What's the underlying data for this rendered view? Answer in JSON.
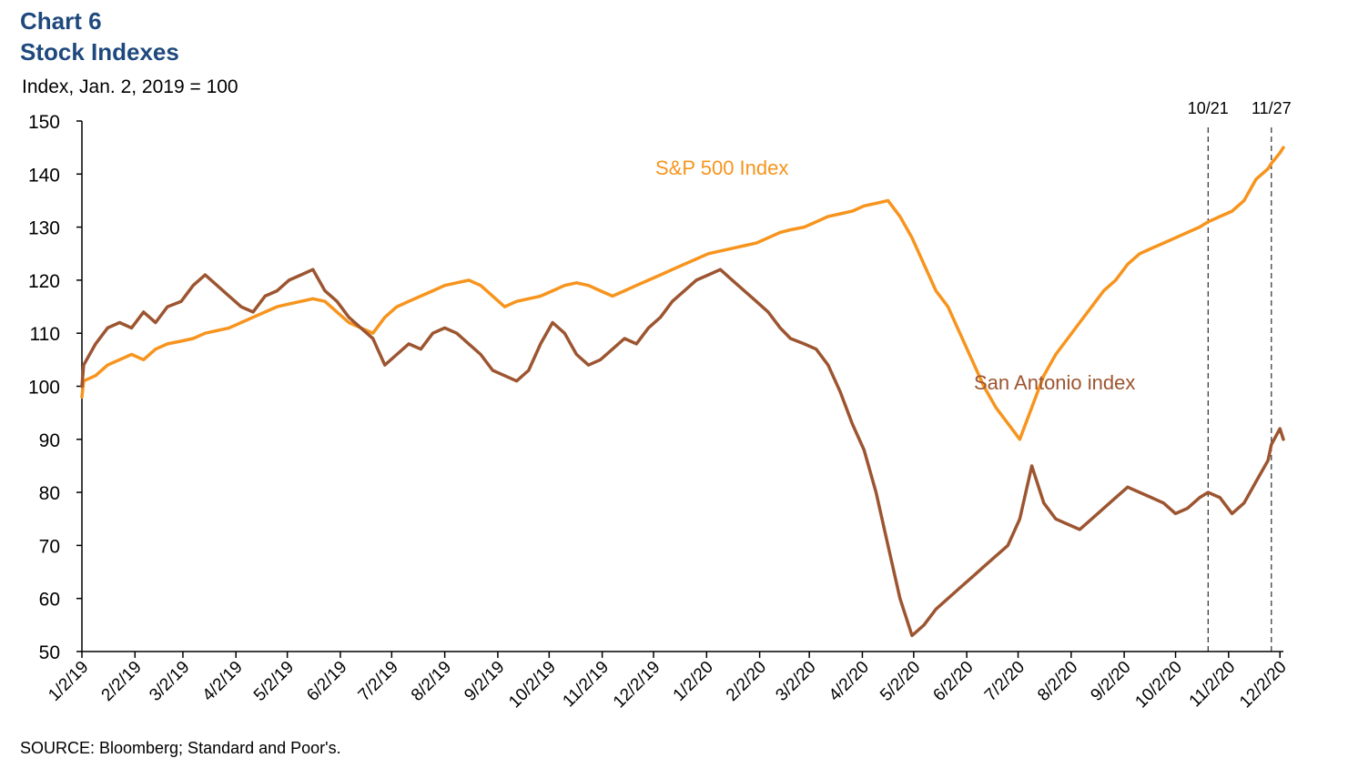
{
  "header": {
    "chart_number": "Chart 6",
    "title": "Stock Indexes",
    "y_unit_label": "Index, Jan. 2, 2019 = 100"
  },
  "footer": {
    "source": "SOURCE: Bloomberg; Standard and Poor's."
  },
  "colors": {
    "title": "#1f497d",
    "sp500": "#f7941d",
    "san_antonio": "#9c5530",
    "axis": "#000000"
  },
  "chart_data": {
    "type": "line",
    "title": "Stock Indexes",
    "ylabel": "Index, Jan. 2, 2019 = 100",
    "xlabel": "",
    "ylim": [
      50,
      150
    ],
    "yticks": [
      50,
      60,
      70,
      80,
      90,
      100,
      110,
      120,
      130,
      140,
      150
    ],
    "xlim": [
      "2019-01-02",
      "2020-12-04"
    ],
    "xticks": [
      "2019-01-02",
      "2019-02-02",
      "2019-03-02",
      "2019-04-02",
      "2019-05-02",
      "2019-06-02",
      "2019-07-02",
      "2019-08-02",
      "2019-09-02",
      "2019-10-02",
      "2019-11-02",
      "2019-12-02",
      "2020-01-02",
      "2020-02-02",
      "2020-03-02",
      "2020-04-02",
      "2020-05-02",
      "2020-06-02",
      "2020-07-02",
      "2020-08-02",
      "2020-09-02",
      "2020-10-02",
      "2020-11-02",
      "2020-12-02"
    ],
    "xtick_labels": [
      "1/2/19",
      "2/2/19",
      "3/2/19",
      "4/2/19",
      "5/2/19",
      "6/2/19",
      "7/2/19",
      "8/2/19",
      "9/2/19",
      "10/2/19",
      "11/2/19",
      "12/2/19",
      "1/2/20",
      "2/2/20",
      "3/2/20",
      "4/2/20",
      "5/2/20",
      "6/2/20",
      "7/2/20",
      "8/2/20",
      "9/2/20",
      "10/2/20",
      "11/2/20",
      "12/2/20"
    ],
    "grid": false,
    "legend": "inline labels",
    "annotations": [
      {
        "date": "2020-10-21",
        "label": "10/21",
        "style": "dashed vertical line"
      },
      {
        "date": "2020-11-27",
        "label": "11/27",
        "style": "dashed vertical line"
      }
    ],
    "series": [
      {
        "name": "S&P 500 Index",
        "color": "#f7941d",
        "points": [
          [
            "2019-01-02",
            98
          ],
          [
            "2019-01-03",
            101
          ],
          [
            "2019-01-10",
            102
          ],
          [
            "2019-01-17",
            104
          ],
          [
            "2019-01-24",
            105
          ],
          [
            "2019-01-31",
            106
          ],
          [
            "2019-02-07",
            105
          ],
          [
            "2019-02-14",
            107
          ],
          [
            "2019-02-21",
            108
          ],
          [
            "2019-03-01",
            108.5
          ],
          [
            "2019-03-08",
            109
          ],
          [
            "2019-03-15",
            110
          ],
          [
            "2019-03-22",
            110.5
          ],
          [
            "2019-03-29",
            111
          ],
          [
            "2019-04-05",
            112
          ],
          [
            "2019-04-12",
            113
          ],
          [
            "2019-04-19",
            114
          ],
          [
            "2019-04-26",
            115
          ],
          [
            "2019-05-03",
            115.5
          ],
          [
            "2019-05-10",
            116
          ],
          [
            "2019-05-17",
            116.5
          ],
          [
            "2019-05-24",
            116
          ],
          [
            "2019-05-31",
            114
          ],
          [
            "2019-06-07",
            112
          ],
          [
            "2019-06-14",
            111
          ],
          [
            "2019-06-21",
            110
          ],
          [
            "2019-06-28",
            113
          ],
          [
            "2019-07-05",
            115
          ],
          [
            "2019-07-12",
            116
          ],
          [
            "2019-07-19",
            117
          ],
          [
            "2019-07-26",
            118
          ],
          [
            "2019-08-02",
            119
          ],
          [
            "2019-08-09",
            119.5
          ],
          [
            "2019-08-16",
            120
          ],
          [
            "2019-08-23",
            119
          ],
          [
            "2019-08-30",
            117
          ],
          [
            "2019-09-06",
            115
          ],
          [
            "2019-09-13",
            116
          ],
          [
            "2019-09-20",
            116.5
          ],
          [
            "2019-09-27",
            117
          ],
          [
            "2019-10-04",
            118
          ],
          [
            "2019-10-11",
            119
          ],
          [
            "2019-10-18",
            119.5
          ],
          [
            "2019-10-25",
            119
          ],
          [
            "2019-11-01",
            118
          ],
          [
            "2019-11-08",
            117
          ],
          [
            "2019-11-15",
            118
          ],
          [
            "2019-11-22",
            119
          ],
          [
            "2019-11-29",
            120
          ],
          [
            "2019-12-06",
            121
          ],
          [
            "2019-12-13",
            122
          ],
          [
            "2019-12-20",
            123
          ],
          [
            "2019-12-27",
            124
          ],
          [
            "2020-01-03",
            125
          ],
          [
            "2020-01-10",
            125.5
          ],
          [
            "2020-01-17",
            126
          ],
          [
            "2020-01-24",
            126.5
          ],
          [
            "2020-01-31",
            127
          ],
          [
            "2020-02-07",
            128
          ],
          [
            "2020-02-14",
            129
          ],
          [
            "2020-02-20",
            129.5
          ],
          [
            "2020-02-28",
            130
          ],
          [
            "2020-03-06",
            131
          ],
          [
            "2020-03-13",
            132
          ],
          [
            "2020-03-20",
            132.5
          ],
          [
            "2020-03-27",
            133
          ],
          [
            "2020-04-03",
            134
          ],
          [
            "2020-04-10",
            134.5
          ],
          [
            "2020-04-17",
            135
          ],
          [
            "2020-04-24",
            132
          ],
          [
            "2020-05-01",
            128
          ],
          [
            "2020-05-08",
            123
          ],
          [
            "2020-05-15",
            118
          ],
          [
            "2020-05-22",
            115
          ],
          [
            "2020-05-29",
            110
          ],
          [
            "2020-06-05",
            105
          ],
          [
            "2020-06-12",
            100
          ],
          [
            "2020-06-19",
            96
          ],
          [
            "2020-06-26",
            93
          ],
          [
            "2020-07-03",
            90
          ],
          [
            "2020-07-10",
            96
          ],
          [
            "2020-07-17",
            102
          ],
          [
            "2020-07-24",
            106
          ],
          [
            "2020-07-31",
            109
          ],
          [
            "2020-08-07",
            112
          ],
          [
            "2020-08-14",
            115
          ],
          [
            "2020-08-21",
            118
          ],
          [
            "2020-08-28",
            120
          ],
          [
            "2020-09-04",
            123
          ],
          [
            "2020-09-11",
            125
          ],
          [
            "2020-09-18",
            126
          ],
          [
            "2020-09-25",
            127
          ],
          [
            "2020-10-02",
            128
          ],
          [
            "2020-10-09",
            129
          ],
          [
            "2020-10-16",
            130
          ],
          [
            "2020-10-21",
            131
          ],
          [
            "2020-10-28",
            132
          ],
          [
            "2020-11-04",
            133
          ],
          [
            "2020-11-11",
            135
          ],
          [
            "2020-11-18",
            139
          ],
          [
            "2020-11-25",
            141
          ],
          [
            "2020-11-27",
            142
          ],
          [
            "2020-12-02",
            144
          ],
          [
            "2020-12-04",
            145
          ]
        ]
      },
      {
        "name": "San Antonio index",
        "color": "#9c5530",
        "points": [
          [
            "2019-01-02",
            100
          ],
          [
            "2019-01-03",
            104
          ],
          [
            "2019-01-10",
            108
          ],
          [
            "2019-01-17",
            111
          ],
          [
            "2019-01-24",
            112
          ],
          [
            "2019-01-31",
            111
          ],
          [
            "2019-02-07",
            114
          ],
          [
            "2019-02-14",
            112
          ],
          [
            "2019-02-21",
            115
          ],
          [
            "2019-03-01",
            116
          ],
          [
            "2019-03-08",
            119
          ],
          [
            "2019-03-15",
            121
          ],
          [
            "2019-03-22",
            119
          ],
          [
            "2019-03-29",
            117
          ],
          [
            "2019-04-05",
            115
          ],
          [
            "2019-04-12",
            114
          ],
          [
            "2019-04-19",
            117
          ],
          [
            "2019-04-26",
            118
          ],
          [
            "2019-05-03",
            120
          ],
          [
            "2019-05-10",
            121
          ],
          [
            "2019-05-17",
            122
          ],
          [
            "2019-05-24",
            118
          ],
          [
            "2019-05-31",
            116
          ],
          [
            "2019-06-07",
            113
          ],
          [
            "2019-06-14",
            111
          ],
          [
            "2019-06-21",
            109
          ],
          [
            "2019-06-28",
            104
          ],
          [
            "2019-07-05",
            106
          ],
          [
            "2019-07-12",
            108
          ],
          [
            "2019-07-19",
            107
          ],
          [
            "2019-07-26",
            110
          ],
          [
            "2019-08-02",
            111
          ],
          [
            "2019-08-09",
            110
          ],
          [
            "2019-08-16",
            108
          ],
          [
            "2019-08-23",
            106
          ],
          [
            "2019-08-30",
            103
          ],
          [
            "2019-09-06",
            102
          ],
          [
            "2019-09-13",
            101
          ],
          [
            "2019-09-20",
            103
          ],
          [
            "2019-09-27",
            108
          ],
          [
            "2019-10-04",
            112
          ],
          [
            "2019-10-11",
            110
          ],
          [
            "2019-10-18",
            106
          ],
          [
            "2019-10-25",
            104
          ],
          [
            "2019-11-01",
            105
          ],
          [
            "2019-11-08",
            107
          ],
          [
            "2019-11-15",
            109
          ],
          [
            "2019-11-22",
            108
          ],
          [
            "2019-11-29",
            111
          ],
          [
            "2019-12-06",
            113
          ],
          [
            "2019-12-13",
            116
          ],
          [
            "2019-12-20",
            118
          ],
          [
            "2019-12-27",
            120
          ],
          [
            "2020-01-03",
            121
          ],
          [
            "2020-01-10",
            122
          ],
          [
            "2020-01-17",
            120
          ],
          [
            "2020-01-24",
            118
          ],
          [
            "2020-01-31",
            116
          ],
          [
            "2020-02-07",
            114
          ],
          [
            "2020-02-14",
            111
          ],
          [
            "2020-02-20",
            109
          ],
          [
            "2020-02-28",
            108
          ],
          [
            "2020-03-06",
            107
          ],
          [
            "2020-03-13",
            104
          ],
          [
            "2020-03-20",
            99
          ],
          [
            "2020-03-27",
            93
          ],
          [
            "2020-04-03",
            88
          ],
          [
            "2020-04-10",
            80
          ],
          [
            "2020-04-17",
            70
          ],
          [
            "2020-04-24",
            60
          ],
          [
            "2020-05-01",
            53
          ],
          [
            "2020-05-08",
            55
          ],
          [
            "2020-05-15",
            58
          ],
          [
            "2020-05-22",
            60
          ],
          [
            "2020-05-29",
            62
          ],
          [
            "2020-06-05",
            64
          ],
          [
            "2020-06-12",
            66
          ],
          [
            "2020-06-19",
            68
          ],
          [
            "2020-06-26",
            70
          ],
          [
            "2020-07-03",
            75
          ],
          [
            "2020-07-10",
            85
          ],
          [
            "2020-07-17",
            78
          ],
          [
            "2020-07-24",
            75
          ],
          [
            "2020-07-31",
            74
          ],
          [
            "2020-08-07",
            73
          ],
          [
            "2020-08-14",
            75
          ],
          [
            "2020-08-21",
            77
          ],
          [
            "2020-08-28",
            79
          ],
          [
            "2020-09-04",
            81
          ],
          [
            "2020-09-11",
            80
          ],
          [
            "2020-09-18",
            79
          ],
          [
            "2020-09-25",
            78
          ],
          [
            "2020-10-02",
            76
          ],
          [
            "2020-10-09",
            77
          ],
          [
            "2020-10-16",
            79
          ],
          [
            "2020-10-21",
            80
          ],
          [
            "2020-10-28",
            79
          ],
          [
            "2020-11-04",
            76
          ],
          [
            "2020-11-11",
            78
          ],
          [
            "2020-11-18",
            82
          ],
          [
            "2020-11-25",
            86
          ],
          [
            "2020-11-27",
            89
          ],
          [
            "2020-12-02",
            92
          ],
          [
            "2020-12-04",
            90
          ]
        ]
      }
    ]
  }
}
